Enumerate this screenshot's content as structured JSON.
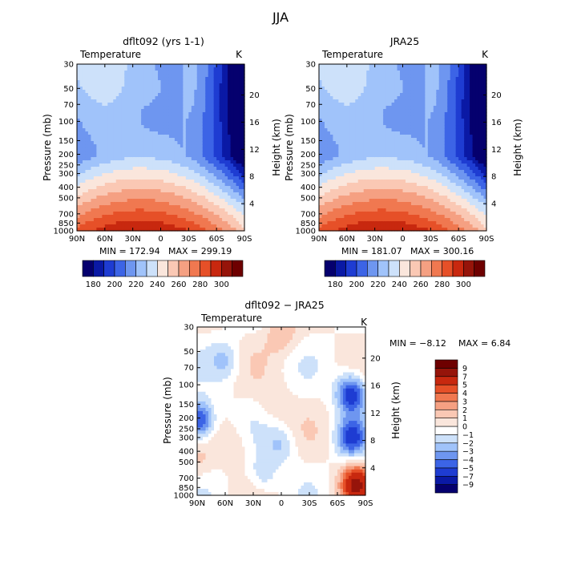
{
  "figure_title": "JJA",
  "colors": {
    "temperature_scale": [
      "#05006e",
      "#0a19a5",
      "#1e3cd2",
      "#3c64e6",
      "#6e96f0",
      "#a0c3fa",
      "#cde1fa",
      "#fae6dc",
      "#fac8b4",
      "#f5a082",
      "#f07850",
      "#e65028",
      "#c8280f",
      "#96140a",
      "#6e0000"
    ],
    "difference_scale": [
      "#05006e",
      "#0a19a5",
      "#1e3cd2",
      "#3c64e6",
      "#6e96f0",
      "#a0c3fa",
      "#cde1fa",
      "#ffffff",
      "#fae6dc",
      "#fac8b4",
      "#f5a082",
      "#f07850",
      "#e65028",
      "#c8280f",
      "#96140a",
      "#6e0000"
    ]
  },
  "chart_data": [
    {
      "type": "heatmap",
      "title": "dflt092 (yrs 1-1)",
      "variable": "Temperature",
      "units": "K",
      "ylabel": "Pressure (mb)",
      "y2label": "Height (km)",
      "xticks": [
        "90N",
        "60N",
        "30N",
        "0",
        "30S",
        "60S",
        "90S"
      ],
      "yticks": [
        "30",
        "50",
        "70",
        "100",
        "150",
        "200",
        "250",
        "300",
        "400",
        "500",
        "700",
        "850",
        "1000"
      ],
      "y2ticks": [
        "20",
        "16",
        "12",
        "8",
        "4"
      ],
      "xlim": [
        90,
        -90
      ],
      "ylim_mb": [
        1000,
        30
      ],
      "min_label": "MIN = 172.94",
      "max_label": "MAX = 299.19",
      "min": 172.94,
      "max": 299.19,
      "colorbar_labels": [
        "180",
        "190",
        "200",
        "210",
        "220",
        "230",
        "240",
        "250",
        "260",
        "270",
        "280",
        "290",
        "300"
      ],
      "colorbar_levels": [
        180,
        190,
        200,
        210,
        220,
        230,
        240,
        250,
        260,
        270,
        280,
        290,
        300
      ],
      "polar_cold_90S": true
    },
    {
      "type": "heatmap",
      "title": "JRA25",
      "variable": "Temperature",
      "units": "K",
      "ylabel": "Pressure (mb)",
      "y2label": "Height (km)",
      "xticks": [
        "90N",
        "60N",
        "30N",
        "0",
        "30S",
        "60S",
        "90S"
      ],
      "yticks": [
        "30",
        "50",
        "70",
        "100",
        "150",
        "200",
        "250",
        "300",
        "400",
        "500",
        "700",
        "850",
        "1000"
      ],
      "y2ticks": [
        "20",
        "16",
        "12",
        "8",
        "4"
      ],
      "xlim": [
        90,
        -90
      ],
      "ylim_mb": [
        1000,
        30
      ],
      "min_label": "MIN = 181.07",
      "max_label": "MAX = 300.16",
      "min": 181.07,
      "max": 300.16,
      "colorbar_labels": [
        "180",
        "190",
        "200",
        "210",
        "220",
        "230",
        "240",
        "250",
        "260",
        "270",
        "280",
        "290",
        "300"
      ],
      "colorbar_levels": [
        180,
        190,
        200,
        210,
        220,
        230,
        240,
        250,
        260,
        270,
        280,
        290,
        300
      ],
      "polar_cold_90S": false
    },
    {
      "type": "heatmap",
      "title": "dflt092 − JRA25",
      "variable": "Temperature",
      "units": "K",
      "ylabel": "Pressure (mb)",
      "y2label": "Height (km)",
      "xticks": [
        "90N",
        "60N",
        "30N",
        "0",
        "30S",
        "60S",
        "90S"
      ],
      "yticks": [
        "30",
        "50",
        "70",
        "100",
        "150",
        "200",
        "250",
        "300",
        "400",
        "500",
        "700",
        "850",
        "1000"
      ],
      "y2ticks": [
        "20",
        "16",
        "12",
        "8",
        "4"
      ],
      "xlim": [
        90,
        -90
      ],
      "ylim_mb": [
        1000,
        30
      ],
      "min_label": "MIN = −8.12",
      "max_label": "MAX = 6.84",
      "min": -8.12,
      "max": 6.84,
      "colorbar_labels": [
        "9",
        "7",
        "5",
        "4",
        "3",
        "2",
        "1",
        "0",
        "−1",
        "−2",
        "−3",
        "−4",
        "−5",
        "−7",
        "−9"
      ],
      "colorbar_levels": [
        -9,
        -7,
        -5,
        -4,
        -3,
        -2,
        -1,
        0,
        1,
        2,
        3,
        4,
        5,
        7,
        9
      ],
      "features": [
        {
          "lat": -75,
          "p": 120,
          "value": -6
        },
        {
          "lat": -75,
          "p": 300,
          "value": -5
        },
        {
          "lat": 88,
          "p": 210,
          "value": -6
        },
        {
          "lat": -80,
          "p": 800,
          "value": 7
        },
        {
          "lat": 0,
          "p": 35,
          "value": 2
        },
        {
          "lat": 5,
          "p": 150,
          "value": 1
        },
        {
          "lat": 50,
          "p": 350,
          "value": 1
        },
        {
          "lat": 0,
          "p": 350,
          "value": -2
        },
        {
          "lat": 60,
          "p": 60,
          "value": -2
        },
        {
          "lat": 20,
          "p": 650,
          "value": -2
        },
        {
          "lat": 88,
          "p": 500,
          "value": 1
        }
      ]
    }
  ]
}
